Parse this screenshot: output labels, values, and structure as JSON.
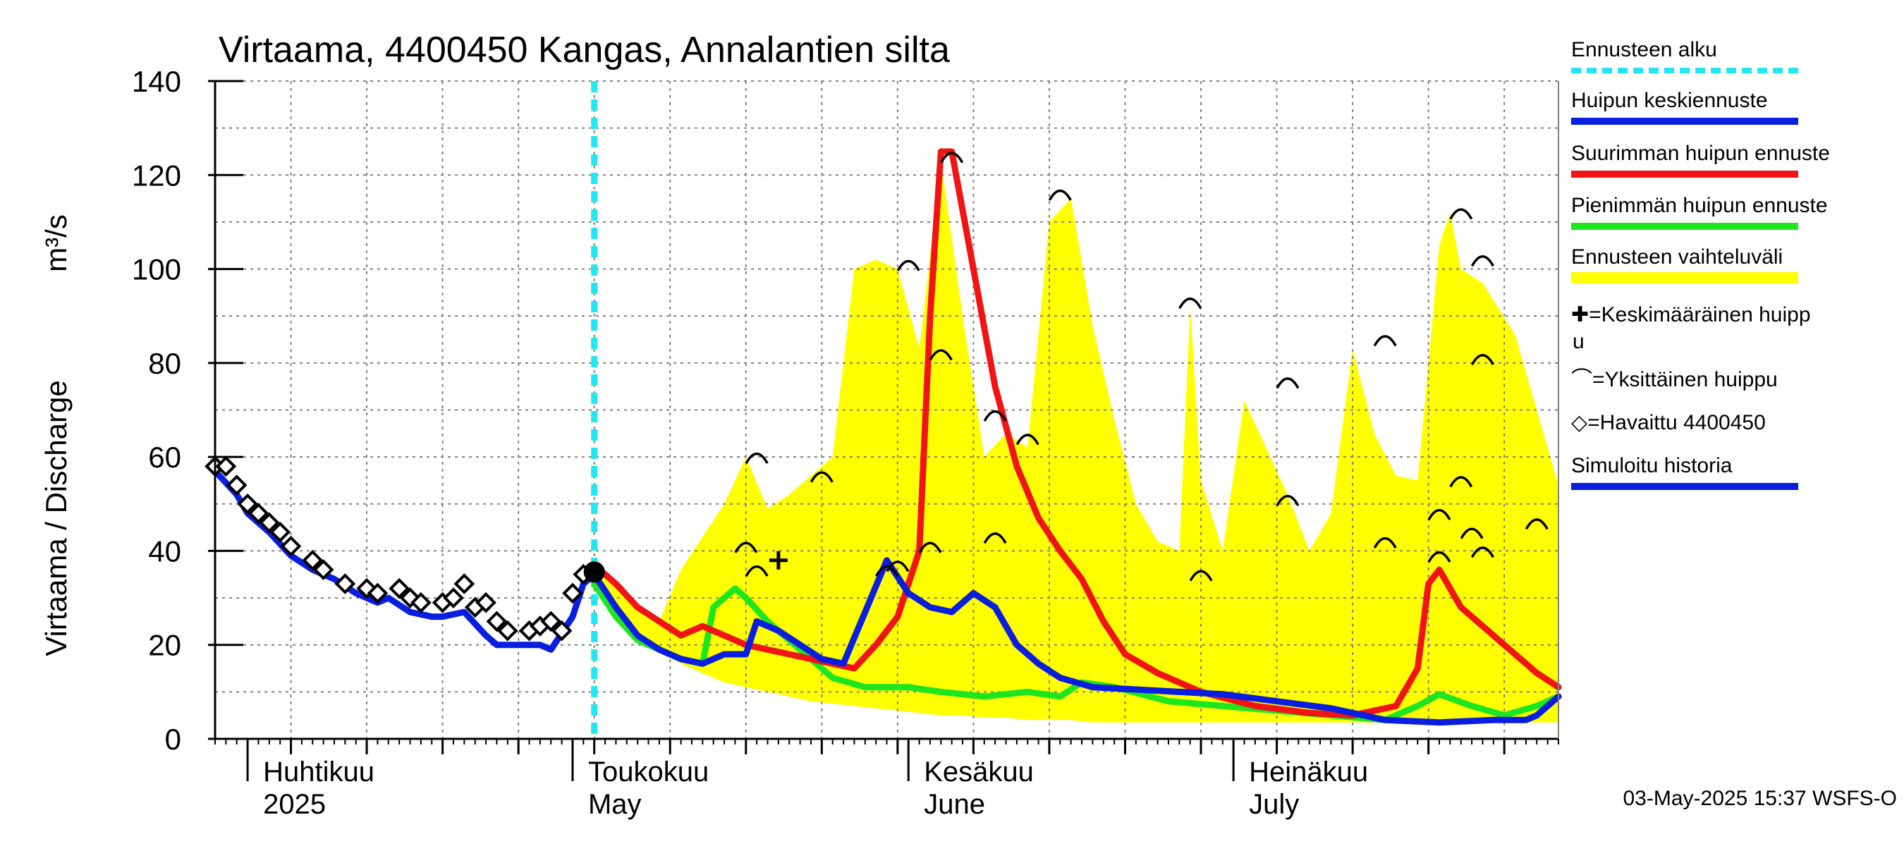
{
  "chart_data": {
    "type": "line",
    "title": "Virtaama, 4400450 Kangas, Annalantien silta",
    "ylabel_left": "Virtaama / Discharge",
    "ylabel_unit": "m³/s",
    "ylim": [
      0,
      140
    ],
    "yticks": [
      0,
      20,
      40,
      60,
      80,
      100,
      120,
      140
    ],
    "xlim": [
      "2025-03-29",
      "2025-07-31"
    ],
    "grid": true,
    "months": [
      {
        "date": "2025-04-01",
        "fi": "Huhtikuu",
        "en": "2025"
      },
      {
        "date": "2025-05-01",
        "fi": "Toukokuu",
        "en": "May"
      },
      {
        "date": "2025-06-01",
        "fi": "Kesäkuu",
        "en": "June"
      },
      {
        "date": "2025-07-01",
        "fi": "Heinäkuu",
        "en": "July"
      }
    ],
    "forecast_start": "2025-05-03",
    "legend_placement": "right",
    "legend": [
      {
        "label": "Ennusteen alku",
        "color": "#22e6f0",
        "style": "dotted"
      },
      {
        "label": "Huipun keskiennuste",
        "color": "#0a1ee0",
        "style": "line"
      },
      {
        "label": "Suurimman huipun ennuste",
        "color": "#f01414",
        "style": "line"
      },
      {
        "label": "Pienimmän huipun ennuste",
        "color": "#1ee61e",
        "style": "line"
      },
      {
        "label": "Ennusteen vaihteluväli",
        "color": "#ffff00",
        "style": "band"
      },
      {
        "label": "✚=Keskimääräinen huippu",
        "color": "#000000",
        "style": "marker"
      },
      {
        "label": "⌒=Yksittäinen huippu",
        "color": "#000000",
        "style": "marker"
      },
      {
        "label": "◇=Havaittu 4400450",
        "color": "#000000",
        "style": "marker"
      },
      {
        "label": "Simuloitu historia",
        "color": "#0a1ee0",
        "style": "line"
      }
    ],
    "series": [
      {
        "name": "Havaittu 4400450",
        "kind": "observed",
        "x": [
          "2025-03-29",
          "2025-03-30",
          "2025-03-31",
          "2025-04-01",
          "2025-04-02",
          "2025-04-03",
          "2025-04-04",
          "2025-04-05",
          "2025-04-07",
          "2025-04-08",
          "2025-04-10",
          "2025-04-12",
          "2025-04-13",
          "2025-04-15",
          "2025-04-16",
          "2025-04-17",
          "2025-04-19",
          "2025-04-20",
          "2025-04-21",
          "2025-04-22",
          "2025-04-23",
          "2025-04-24",
          "2025-04-25",
          "2025-04-27",
          "2025-04-28",
          "2025-04-29",
          "2025-04-30",
          "2025-05-01",
          "2025-05-02"
        ],
        "y": [
          58,
          58,
          54,
          50,
          48,
          46,
          44,
          41,
          38,
          36,
          33,
          32,
          31,
          32,
          30,
          29,
          29,
          30,
          33,
          28,
          29,
          25,
          23,
          23,
          24,
          25,
          23,
          31,
          35
        ]
      },
      {
        "name": "Simuloitu historia",
        "kind": "simulated",
        "x": [
          "2025-03-29",
          "2025-03-31",
          "2025-04-01",
          "2025-04-03",
          "2025-04-05",
          "2025-04-07",
          "2025-04-09",
          "2025-04-11",
          "2025-04-13",
          "2025-04-14",
          "2025-04-16",
          "2025-04-18",
          "2025-04-19",
          "2025-04-21",
          "2025-04-23",
          "2025-04-24",
          "2025-04-26",
          "2025-04-28",
          "2025-04-29",
          "2025-05-01",
          "2025-05-02",
          "2025-05-03"
        ],
        "y": [
          57,
          52,
          48,
          44,
          39,
          36,
          34,
          31,
          29,
          30,
          27,
          26,
          26,
          27,
          22,
          20,
          20,
          20,
          19,
          26,
          33,
          35
        ]
      },
      {
        "name": "Huipun keskiennuste",
        "kind": "mean",
        "x": [
          "2025-05-03",
          "2025-05-05",
          "2025-05-07",
          "2025-05-09",
          "2025-05-11",
          "2025-05-13",
          "2025-05-15",
          "2025-05-17",
          "2025-05-18",
          "2025-05-20",
          "2025-05-22",
          "2025-05-24",
          "2025-05-26",
          "2025-05-28",
          "2025-05-30",
          "2025-06-01",
          "2025-06-03",
          "2025-06-05",
          "2025-06-07",
          "2025-06-09",
          "2025-06-11",
          "2025-06-13",
          "2025-06-15",
          "2025-06-18",
          "2025-06-22",
          "2025-06-26",
          "2025-06-30",
          "2025-07-05",
          "2025-07-10",
          "2025-07-15",
          "2025-07-20",
          "2025-07-25",
          "2025-07-28",
          "2025-07-29",
          "2025-07-31"
        ],
        "y": [
          35,
          28,
          22,
          19,
          17,
          16,
          18,
          18,
          25,
          23,
          20,
          17,
          16,
          27,
          38,
          31,
          28,
          27,
          31,
          28,
          20,
          16,
          13,
          11,
          10.5,
          10,
          9.5,
          8,
          6.5,
          4,
          3.5,
          4,
          4,
          5,
          9
        ]
      },
      {
        "name": "Suurimman huipun ennuste",
        "kind": "max",
        "x": [
          "2025-05-03",
          "2025-05-05",
          "2025-05-07",
          "2025-05-09",
          "2025-05-11",
          "2025-05-13",
          "2025-05-15",
          "2025-05-17",
          "2025-05-19",
          "2025-05-21",
          "2025-05-23",
          "2025-05-25",
          "2025-05-27",
          "2025-05-29",
          "2025-05-31",
          "2025-06-02",
          "2025-06-03",
          "2025-06-04",
          "2025-06-05",
          "2025-06-07",
          "2025-06-09",
          "2025-06-11",
          "2025-06-13",
          "2025-06-15",
          "2025-06-17",
          "2025-06-19",
          "2025-06-21",
          "2025-06-24",
          "2025-06-28",
          "2025-07-03",
          "2025-07-08",
          "2025-07-12",
          "2025-07-16",
          "2025-07-18",
          "2025-07-19",
          "2025-07-20",
          "2025-07-22",
          "2025-07-24",
          "2025-07-27",
          "2025-07-29",
          "2025-07-31"
        ],
        "y": [
          37,
          33,
          28,
          25,
          22,
          24,
          22,
          20,
          19,
          18,
          17,
          16,
          15,
          20,
          26,
          40,
          90,
          125,
          125,
          100,
          75,
          58,
          47,
          40,
          34,
          25,
          18,
          14,
          10,
          7,
          5.5,
          5,
          7,
          15,
          33,
          36,
          28,
          24,
          18,
          14,
          11
        ]
      },
      {
        "name": "Pienimmän huipun ennuste",
        "kind": "min",
        "x": [
          "2025-05-03",
          "2025-05-05",
          "2025-05-07",
          "2025-05-09",
          "2025-05-11",
          "2025-05-13",
          "2025-05-14",
          "2025-05-16",
          "2025-05-17",
          "2025-05-19",
          "2025-05-21",
          "2025-05-23",
          "2025-05-25",
          "2025-05-28",
          "2025-06-01",
          "2025-06-04",
          "2025-06-08",
          "2025-06-12",
          "2025-06-15",
          "2025-06-17",
          "2025-06-20",
          "2025-06-25",
          "2025-06-30",
          "2025-07-05",
          "2025-07-10",
          "2025-07-15",
          "2025-07-18",
          "2025-07-20",
          "2025-07-23",
          "2025-07-26",
          "2025-07-29",
          "2025-07-31"
        ],
        "y": [
          33,
          26,
          21,
          19,
          17,
          16,
          28,
          32,
          30,
          25,
          21,
          17,
          13,
          11,
          11,
          10,
          9,
          10,
          9,
          12,
          11,
          8,
          7,
          6,
          5,
          4,
          7,
          9.5,
          7,
          5,
          7,
          9
        ]
      },
      {
        "name": "Ennusteen vaihteluväli",
        "kind": "band",
        "x": [
          "2025-05-03",
          "2025-05-06",
          "2025-05-09",
          "2025-05-11",
          "2025-05-13",
          "2025-05-15",
          "2025-05-17",
          "2025-05-19",
          "2025-05-21",
          "2025-05-23",
          "2025-05-25",
          "2025-05-27",
          "2025-05-29",
          "2025-05-31",
          "2025-06-02",
          "2025-06-04",
          "2025-06-06",
          "2025-06-08",
          "2025-06-10",
          "2025-06-12",
          "2025-06-14",
          "2025-06-16",
          "2025-06-18",
          "2025-06-20",
          "2025-06-22",
          "2025-06-24",
          "2025-06-26",
          "2025-06-27",
          "2025-06-28",
          "2025-06-30",
          "2025-07-02",
          "2025-07-04",
          "2025-07-06",
          "2025-07-08",
          "2025-07-10",
          "2025-07-12",
          "2025-07-14",
          "2025-07-16",
          "2025-07-18",
          "2025-07-20",
          "2025-07-21",
          "2025-07-22",
          "2025-07-24",
          "2025-07-27",
          "2025-07-31"
        ],
        "upper": [
          37,
          30,
          25,
          36,
          43,
          50,
          60,
          49,
          52,
          56,
          60,
          100,
          102,
          100,
          83,
          123,
          90,
          60,
          65,
          62,
          110,
          115,
          88,
          68,
          50,
          42,
          40,
          92,
          55,
          40,
          72,
          62,
          52,
          40,
          48,
          83,
          65,
          56,
          55,
          105,
          112,
          100,
          97,
          86,
          54
        ],
        "lower": [
          33,
          24,
          19,
          16,
          14,
          12,
          11,
          10,
          9,
          8,
          7.5,
          7,
          6.5,
          6,
          5.5,
          5,
          5,
          4.5,
          4.5,
          4,
          4,
          4,
          3.5,
          3.5,
          3.5,
          3.5,
          3.5,
          3.5,
          3.5,
          3.5,
          3.5,
          3.5,
          3.5,
          3.5,
          3.5,
          3.5,
          3.5,
          3.5,
          3.5,
          3.5,
          3.5,
          3.5,
          3.5,
          3.5,
          3.5
        ]
      }
    ],
    "individual_peaks": [
      {
        "x": "2025-05-18",
        "y": 60
      },
      {
        "x": "2025-05-17",
        "y": 41
      },
      {
        "x": "2025-05-18",
        "y": 36
      },
      {
        "x": "2025-05-24",
        "y": 56
      },
      {
        "x": "2025-05-30",
        "y": 36
      },
      {
        "x": "2025-05-31",
        "y": 37
      },
      {
        "x": "2025-06-01",
        "y": 101
      },
      {
        "x": "2025-06-03",
        "y": 41
      },
      {
        "x": "2025-06-04",
        "y": 82
      },
      {
        "x": "2025-06-05",
        "y": 124
      },
      {
        "x": "2025-06-09",
        "y": 69
      },
      {
        "x": "2025-06-09",
        "y": 43
      },
      {
        "x": "2025-06-12",
        "y": 64
      },
      {
        "x": "2025-06-15",
        "y": 116
      },
      {
        "x": "2025-06-27",
        "y": 93
      },
      {
        "x": "2025-06-28",
        "y": 35
      },
      {
        "x": "2025-07-06",
        "y": 76
      },
      {
        "x": "2025-07-06",
        "y": 51
      },
      {
        "x": "2025-07-15",
        "y": 42
      },
      {
        "x": "2025-07-15",
        "y": 85
      },
      {
        "x": "2025-07-20",
        "y": 39
      },
      {
        "x": "2025-07-20",
        "y": 48
      },
      {
        "x": "2025-07-22",
        "y": 55
      },
      {
        "x": "2025-07-22",
        "y": 112
      },
      {
        "x": "2025-07-23",
        "y": 44
      },
      {
        "x": "2025-07-24",
        "y": 102
      },
      {
        "x": "2025-07-24",
        "y": 81
      },
      {
        "x": "2025-07-24",
        "y": 40
      },
      {
        "x": "2025-07-29",
        "y": 46
      }
    ],
    "mean_peak": {
      "x": "2025-05-20",
      "y": 38
    },
    "current_observation": {
      "x": "2025-05-03",
      "y": 35.5
    }
  },
  "footer": "03-May-2025 15:37 WSFS-O",
  "colors": {
    "band": "#ffff00",
    "mean": "#0a1ee0",
    "max": "#f01414",
    "min": "#1ee61e",
    "forecast_start": "#22e6f0",
    "grid": "#808080"
  }
}
